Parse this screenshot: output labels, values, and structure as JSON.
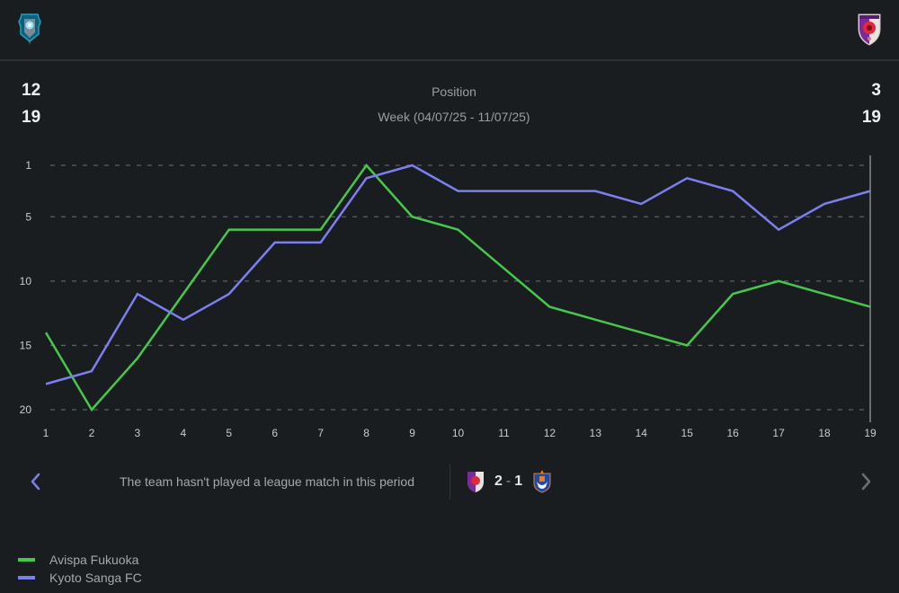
{
  "header": {
    "home_logo": "avispa-fukuoka-crest",
    "away_logo": "kyoto-sanga-crest"
  },
  "summary": {
    "home_position": "12",
    "home_week": "19",
    "away_position": "3",
    "away_week": "19",
    "metric_label": "Position",
    "period_label": "Week (04/07/25 - 11/07/25)"
  },
  "navigation": {
    "prev_icon": "chevron-left-icon",
    "next_icon": "chevron-right-icon",
    "no_match_text": "The team hasn't played a league match in this period"
  },
  "match": {
    "home_logo": "kyoto-sanga-crest",
    "home_score": "2",
    "separator": "-",
    "away_score": "1",
    "away_logo": "albirex-niigata-crest"
  },
  "colors": {
    "avispa": "#46c84a",
    "kyoto": "#7b7ff0",
    "background": "#1a1d20"
  },
  "chart_data": {
    "type": "line",
    "title": "Position",
    "xlabel": "Week",
    "ylabel": "Position",
    "x": [
      1,
      2,
      3,
      4,
      5,
      6,
      7,
      8,
      9,
      10,
      11,
      12,
      13,
      14,
      15,
      16,
      17,
      18,
      19
    ],
    "y_ticks": [
      1,
      5,
      10,
      15,
      20
    ],
    "ylim": [
      20,
      1
    ],
    "y_inverted": true,
    "grid": true,
    "selected_week": 19,
    "legend_position": "bottom-left",
    "series": [
      {
        "name": "Avispa Fukuoka",
        "color": "#46c84a",
        "values": [
          14,
          20,
          16,
          11,
          6,
          6,
          6,
          1,
          5,
          6,
          9,
          12,
          13,
          14,
          15,
          11,
          10,
          11,
          12
        ]
      },
      {
        "name": "Kyoto Sanga FC",
        "color": "#7b7ff0",
        "values": [
          18,
          17,
          11,
          13,
          11,
          7,
          7,
          2,
          1,
          3,
          3,
          3,
          3,
          4,
          2,
          3,
          6,
          4,
          3
        ]
      }
    ]
  }
}
